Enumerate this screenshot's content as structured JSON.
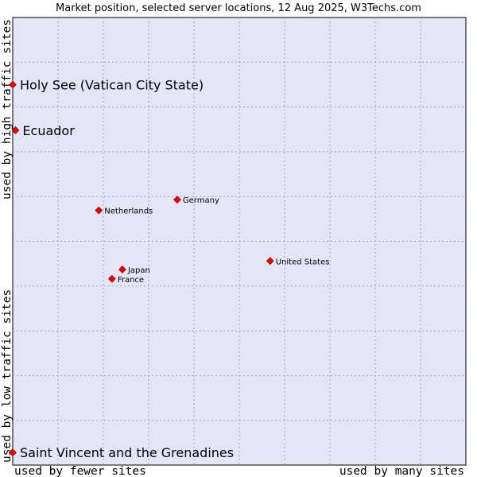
{
  "chart_data": {
    "type": "scatter",
    "title": "Market position, selected server locations, 12 Aug 2025, W3Techs.com",
    "xlabel_low": "used by fewer sites",
    "xlabel_high": "used by many sites",
    "ylabel_low": "used by low traffic sites",
    "ylabel_high": "used by high traffic sites",
    "xlim": [
      0,
      100
    ],
    "ylim": [
      0,
      100
    ],
    "grid": true,
    "marker_color": "#ee0000",
    "plot_background": "#e4e6f8",
    "points": [
      {
        "label": "Holy See (Vatican City State)",
        "x": 0.0,
        "y": 85.0,
        "emphasis": true
      },
      {
        "label": "Ecuador",
        "x": 0.6,
        "y": 74.8,
        "emphasis": true
      },
      {
        "label": "Germany",
        "x": 36.3,
        "y": 59.3,
        "emphasis": false
      },
      {
        "label": "Netherlands",
        "x": 19.0,
        "y": 56.9,
        "emphasis": false
      },
      {
        "label": "United States",
        "x": 56.8,
        "y": 45.6,
        "emphasis": false
      },
      {
        "label": "Japan",
        "x": 24.2,
        "y": 43.7,
        "emphasis": false
      },
      {
        "label": "France",
        "x": 21.9,
        "y": 41.6,
        "emphasis": false
      },
      {
        "label": "Saint Vincent and the Grenadines",
        "x": 0.0,
        "y": 2.8,
        "emphasis": true
      }
    ]
  }
}
